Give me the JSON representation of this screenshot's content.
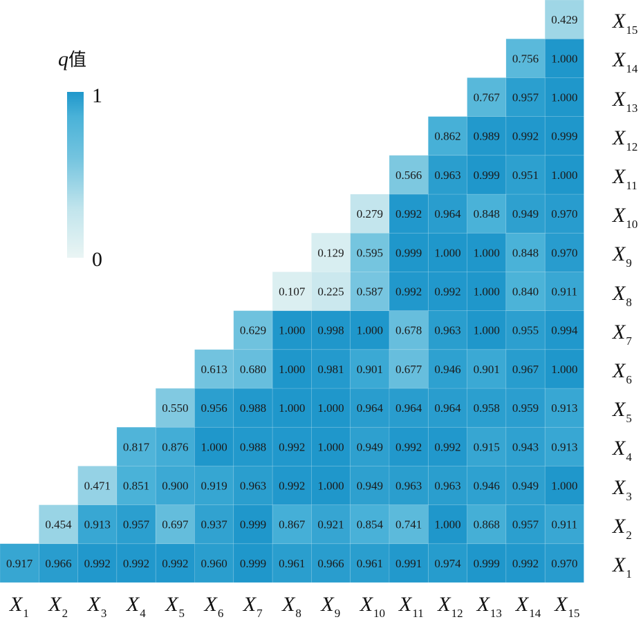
{
  "chart_data": {
    "type": "heatmap",
    "title": "",
    "legend_title": "q值",
    "legend_title_parts": [
      "q",
      "值"
    ],
    "legend_placement": "top-left",
    "colorbar": {
      "min": 0,
      "max": 1,
      "min_label": "0",
      "max_label": "1",
      "color_low": "#e8f4f3",
      "color_high": "#1f97cb"
    },
    "variables": [
      "X1",
      "X2",
      "X3",
      "X4",
      "X5",
      "X6",
      "X7",
      "X8",
      "X9",
      "X10",
      "X11",
      "X12",
      "X13",
      "X14",
      "X15"
    ],
    "label_base": "X",
    "label_subscripts": [
      "1",
      "2",
      "3",
      "4",
      "5",
      "6",
      "7",
      "8",
      "9",
      "10",
      "11",
      "12",
      "13",
      "14",
      "15"
    ],
    "rows": [
      {
        "row": "X1",
        "values": [
          "0.917",
          "0.966",
          "0.992",
          "0.992",
          "0.992",
          "0.960",
          "0.999",
          "0.961",
          "0.966",
          "0.961",
          "0.991",
          "0.974",
          "0.999",
          "0.992",
          "0.970"
        ]
      },
      {
        "row": "X2",
        "values": [
          "0.454",
          "0.913",
          "0.957",
          "0.697",
          "0.937",
          "0.999",
          "0.867",
          "0.921",
          "0.854",
          "0.741",
          "1.000",
          "0.868",
          "0.957",
          "0.911"
        ]
      },
      {
        "row": "X3",
        "values": [
          "0.471",
          "0.851",
          "0.900",
          "0.919",
          "0.963",
          "0.992",
          "1.000",
          "0.949",
          "0.963",
          "0.963",
          "0.946",
          "0.949",
          "1.000"
        ]
      },
      {
        "row": "X4",
        "values": [
          "0.817",
          "0.876",
          "1.000",
          "0.988",
          "0.992",
          "1.000",
          "0.949",
          "0.992",
          "0.992",
          "0.915",
          "0.943",
          "0.913"
        ]
      },
      {
        "row": "X5",
        "values": [
          "0.550",
          "0.956",
          "0.988",
          "1.000",
          "1.000",
          "0.964",
          "0.964",
          "0.964",
          "0.958",
          "0.959",
          "0.913"
        ]
      },
      {
        "row": "X6",
        "values": [
          "0.613",
          "0.680",
          "1.000",
          "0.981",
          "0.901",
          "0.677",
          "0.946",
          "0.901",
          "0.967",
          "1.000"
        ]
      },
      {
        "row": "X7",
        "values": [
          "0.629",
          "1.000",
          "0.998",
          "1.000",
          "0.678",
          "0.963",
          "1.000",
          "0.955",
          "0.994"
        ]
      },
      {
        "row": "X8",
        "values": [
          "0.107",
          "0.225",
          "0.587",
          "0.992",
          "0.992",
          "1.000",
          "0.840",
          "0.911"
        ]
      },
      {
        "row": "X9",
        "values": [
          "0.129",
          "0.595",
          "0.999",
          "1.000",
          "1.000",
          "0.848",
          "0.970"
        ]
      },
      {
        "row": "X10",
        "values": [
          "0.279",
          "0.992",
          "0.964",
          "0.848",
          "0.949",
          "0.970"
        ]
      },
      {
        "row": "X11",
        "values": [
          "0.566",
          "0.963",
          "0.999",
          "0.951",
          "1.000"
        ]
      },
      {
        "row": "X12",
        "values": [
          "0.862",
          "0.989",
          "0.992",
          "0.999"
        ]
      },
      {
        "row": "X13",
        "values": [
          "0.767",
          "0.957",
          "1.000"
        ]
      },
      {
        "row": "X14",
        "values": [
          "0.756",
          "1.000"
        ]
      },
      {
        "row": "X15",
        "values": [
          "0.429"
        ]
      }
    ]
  }
}
